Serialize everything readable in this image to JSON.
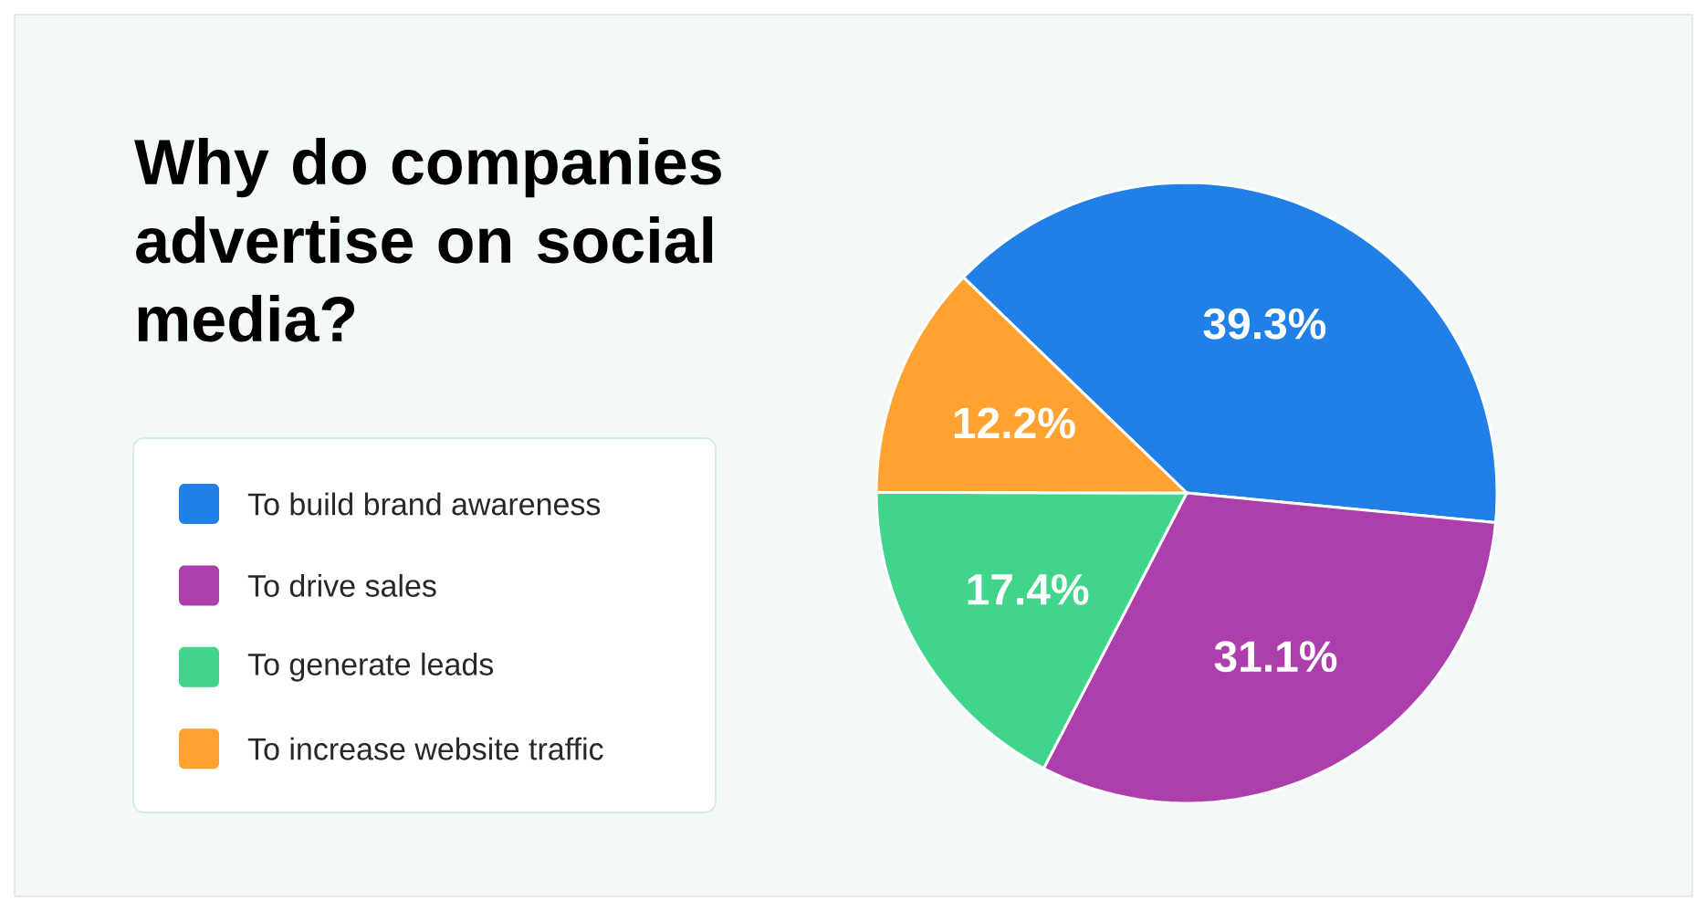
{
  "chart_data": {
    "type": "pie",
    "title": "Why do companies advertise on social media?",
    "categories": [
      "To build brand awareness",
      "To drive sales",
      "To generate leads",
      "To increase website traffic"
    ],
    "values": [
      39.3,
      31.1,
      17.4,
      12.2
    ],
    "value_labels": [
      "39.3%",
      "31.1%",
      "17.4%",
      "12.2%"
    ],
    "colors": [
      "#2180e8",
      "#ad3fad",
      "#40d58a",
      "#ffa232"
    ],
    "legend": "left"
  }
}
